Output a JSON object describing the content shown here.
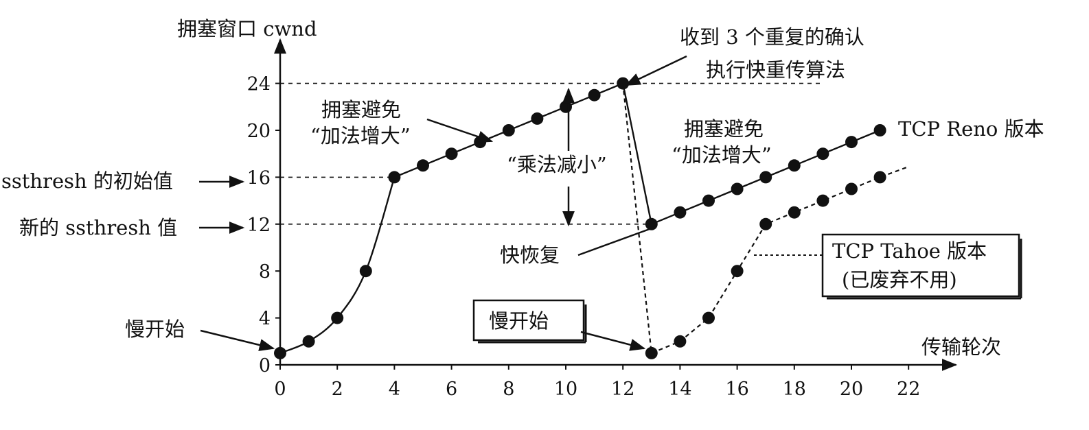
{
  "chart_data": {
    "type": "line",
    "y_axis_title": "拥塞窗口 cwnd",
    "x_axis_title": "传输轮次",
    "x_ticks": [
      0,
      2,
      4,
      6,
      8,
      10,
      12,
      14,
      16,
      18,
      20,
      22
    ],
    "y_ticks": [
      0,
      4,
      8,
      12,
      16,
      20,
      24
    ],
    "xlim": [
      0,
      23
    ],
    "ylim": [
      0,
      27
    ],
    "grid": false,
    "reference_lines": [
      {
        "y": 24,
        "x_from": 0,
        "x_to": 19
      },
      {
        "y": 16,
        "x_from": 0,
        "x_to": 4
      },
      {
        "y": 12,
        "x_from": 0,
        "x_to": 13
      }
    ],
    "series": [
      {
        "name": "TCP Reno 版本",
        "style": "solid",
        "points": [
          [
            0,
            1
          ],
          [
            1,
            2
          ],
          [
            2,
            4
          ],
          [
            3,
            8
          ],
          [
            4,
            16
          ],
          [
            5,
            17
          ],
          [
            6,
            18
          ],
          [
            7,
            19
          ],
          [
            8,
            20
          ],
          [
            9,
            21
          ],
          [
            10,
            22
          ],
          [
            11,
            23
          ],
          [
            12,
            24
          ],
          [
            13,
            12
          ],
          [
            14,
            13
          ],
          [
            15,
            14
          ],
          [
            16,
            15
          ],
          [
            17,
            16
          ],
          [
            18,
            17
          ],
          [
            19,
            18
          ],
          [
            20,
            19
          ],
          [
            21,
            20
          ]
        ]
      },
      {
        "name": "TCP Tahoe 版本",
        "style": "dashed",
        "points": [
          [
            12,
            24
          ],
          [
            13,
            1
          ],
          [
            14,
            2
          ],
          [
            15,
            4
          ],
          [
            16,
            8
          ],
          [
            17,
            12
          ],
          [
            18,
            13
          ],
          [
            19,
            14
          ],
          [
            20,
            15
          ],
          [
            21,
            16
          ]
        ],
        "extends_to_x": 22
      }
    ],
    "annotations": {
      "triple_ack_line1": "收到 3 个重复的确认",
      "triple_ack_line2": "执行快重传算法",
      "ca_left_line1": "拥塞避免",
      "ca_left_line2": "“加法增大”",
      "ca_right_line1": "拥塞避免",
      "ca_right_line2": "“加法增大”",
      "mult_decrease": "“乘法减小”",
      "reno_label": "TCP Reno 版本",
      "ssthresh_initial": "ssthresh 的初始值",
      "ssthresh_new": "新的 ssthresh 值",
      "fast_recovery": "快恢复",
      "slow_start_left": "慢开始",
      "slow_start_boxed": "慢开始",
      "tahoe_line1": "TCP Tahoe 版本",
      "tahoe_line2": "(已废弃不用)"
    }
  }
}
